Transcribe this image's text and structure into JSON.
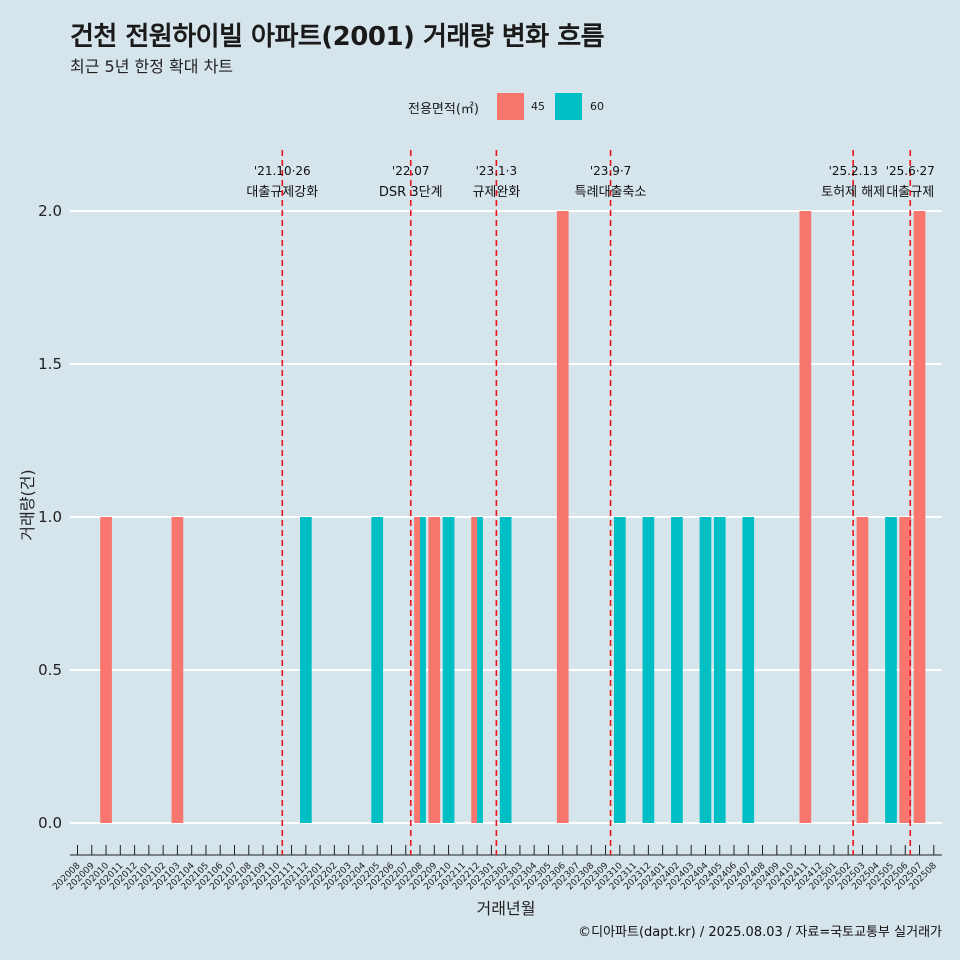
{
  "title": "건천 전원하이빌 아파트(2001) 거래량 변화 흐름",
  "subtitle": "최근 5년 한정 확대 차트",
  "caption": "©디아파트(dapt.kr) / 2025.08.03 / 자료=국토교통부 실거래가",
  "legend": {
    "title": "전용면적(㎡)",
    "items": [
      {
        "label": "45",
        "color": "#f8766d"
      },
      {
        "label": "60",
        "color": "#00bfc4"
      }
    ]
  },
  "chart_data": {
    "type": "bar",
    "xlabel": "거래년월",
    "ylabel": "거래량(건)",
    "ylim": [
      0,
      2
    ],
    "yticks": [
      "0.0",
      "0.5",
      "1.0",
      "1.5",
      "2.0"
    ],
    "grid": true,
    "legend_position": "top",
    "categories": [
      "202008",
      "202009",
      "202010",
      "202011",
      "202012",
      "202101",
      "202102",
      "202103",
      "202104",
      "202105",
      "202106",
      "202107",
      "202108",
      "202109",
      "202110",
      "202111",
      "202112",
      "202201",
      "202202",
      "202203",
      "202204",
      "202205",
      "202206",
      "202207",
      "202208",
      "202209",
      "202210",
      "202211",
      "202212",
      "202301",
      "202302",
      "202303",
      "202304",
      "202305",
      "202306",
      "202307",
      "202308",
      "202309",
      "202310",
      "202311",
      "202312",
      "202401",
      "202402",
      "202403",
      "202404",
      "202405",
      "202406",
      "202407",
      "202408",
      "202409",
      "202410",
      "202411",
      "202412",
      "202501",
      "202502",
      "202503",
      "202504",
      "202505",
      "202506",
      "202507",
      "202508"
    ],
    "series": [
      {
        "name": "45",
        "color": "#f8766d",
        "values": [
          0,
          0,
          1,
          0,
          0,
          0,
          0,
          1,
          0,
          0,
          0,
          0,
          0,
          0,
          0,
          0,
          0,
          0,
          0,
          0,
          0,
          0,
          0,
          0,
          1,
          1,
          0,
          0,
          1,
          0,
          0,
          0,
          0,
          0,
          2,
          0,
          0,
          0,
          0,
          0,
          0,
          0,
          0,
          0,
          0,
          0,
          0,
          0,
          0,
          0,
          0,
          2,
          0,
          0,
          0,
          1,
          0,
          0,
          1,
          2,
          0
        ]
      },
      {
        "name": "60",
        "color": "#00bfc4",
        "values": [
          0,
          0,
          0,
          0,
          0,
          0,
          0,
          0,
          0,
          0,
          0,
          0,
          0,
          0,
          0,
          0,
          1,
          0,
          0,
          0,
          0,
          1,
          0,
          0,
          1,
          0,
          1,
          0,
          1,
          0,
          1,
          0,
          0,
          0,
          0,
          0,
          0,
          0,
          1,
          0,
          1,
          0,
          1,
          0,
          1,
          1,
          0,
          1,
          0,
          0,
          0,
          0,
          0,
          0,
          0,
          0,
          0,
          1,
          0,
          0,
          0
        ]
      }
    ],
    "annotations": [
      {
        "date": "'21.10·26",
        "label": "대출규제강화",
        "x": "202110"
      },
      {
        "date": "'22.07",
        "label": "DSR 3단계",
        "x": "202207"
      },
      {
        "date": "'23.1·3",
        "label": "규제완화",
        "x": "202301"
      },
      {
        "date": "'23.9·7",
        "label": "특례대출축소",
        "x": "202309"
      },
      {
        "date": "'25.2.13",
        "label": "토허제 해제",
        "x": "202502"
      },
      {
        "date": "'25.6·27",
        "label": "대출규제",
        "x": "202506"
      }
    ]
  }
}
